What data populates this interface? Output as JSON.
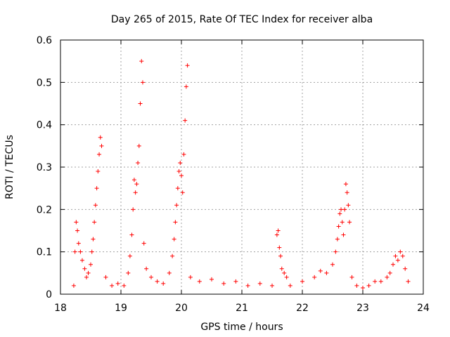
{
  "chart_data": {
    "type": "scatter",
    "title": "Day 265 of 2015, Rate Of TEC Index for receiver alba",
    "xlabel": "GPS time / hours",
    "ylabel": "ROTI / TECUs",
    "xlim": [
      18,
      24
    ],
    "ylim": [
      0,
      0.6
    ],
    "xticks": [
      "18",
      "19",
      "20",
      "21",
      "22",
      "23",
      "24"
    ],
    "yticks": [
      "0",
      "0.1",
      "0.2",
      "0.3",
      "0.4",
      "0.5",
      "0.6"
    ],
    "grid": true,
    "marker": "plus",
    "color": "#ff0000",
    "series": [
      {
        "name": "ROTI",
        "x": [
          18.22,
          18.24,
          18.26,
          18.28,
          18.3,
          18.33,
          18.36,
          18.4,
          18.43,
          18.46,
          18.5,
          18.52,
          18.54,
          18.56,
          18.58,
          18.6,
          18.62,
          18.64,
          18.66,
          18.68,
          18.75,
          18.85,
          18.95,
          19.05,
          19.12,
          19.15,
          19.18,
          19.2,
          19.22,
          19.24,
          19.26,
          19.28,
          19.3,
          19.32,
          19.34,
          19.36,
          19.38,
          19.42,
          19.5,
          19.6,
          19.7,
          19.8,
          19.85,
          19.88,
          19.9,
          19.92,
          19.94,
          19.96,
          19.98,
          20,
          20.02,
          20.04,
          20.06,
          20.08,
          20.1,
          20.15,
          20.3,
          20.5,
          20.7,
          20.9,
          21.1,
          21.3,
          21.5,
          21.58,
          21.6,
          21.62,
          21.64,
          21.66,
          21.7,
          21.74,
          21.8,
          22,
          22.2,
          22.3,
          22.4,
          22.5,
          22.55,
          22.58,
          22.6,
          22.62,
          22.64,
          22.66,
          22.68,
          22.7,
          22.72,
          22.74,
          22.76,
          22.78,
          22.82,
          22.9,
          23,
          23.1,
          23.2,
          23.3,
          23.4,
          23.45,
          23.5,
          23.54,
          23.58,
          23.62,
          23.66,
          23.7,
          23.75
        ],
        "y": [
          0.02,
          0.1,
          0.17,
          0.15,
          0.12,
          0.1,
          0.08,
          0.06,
          0.04,
          0.05,
          0.07,
          0.1,
          0.13,
          0.17,
          0.21,
          0.25,
          0.29,
          0.33,
          0.37,
          0.35,
          0.04,
          0.02,
          0.025,
          0.02,
          0.05,
          0.09,
          0.14,
          0.2,
          0.27,
          0.24,
          0.26,
          0.31,
          0.35,
          0.45,
          0.55,
          0.5,
          0.12,
          0.06,
          0.04,
          0.03,
          0.025,
          0.05,
          0.09,
          0.13,
          0.17,
          0.21,
          0.25,
          0.29,
          0.31,
          0.28,
          0.24,
          0.33,
          0.41,
          0.49,
          0.54,
          0.04,
          0.03,
          0.035,
          0.025,
          0.03,
          0.02,
          0.025,
          0.02,
          0.14,
          0.15,
          0.11,
          0.09,
          0.06,
          0.05,
          0.04,
          0.02,
          0.03,
          0.04,
          0.055,
          0.05,
          0.07,
          0.1,
          0.13,
          0.16,
          0.19,
          0.2,
          0.17,
          0.14,
          0.2,
          0.26,
          0.24,
          0.21,
          0.17,
          0.04,
          0.02,
          0.015,
          0.02,
          0.03,
          0.03,
          0.04,
          0.05,
          0.07,
          0.09,
          0.08,
          0.1,
          0.09,
          0.06,
          0.03
        ]
      }
    ]
  }
}
